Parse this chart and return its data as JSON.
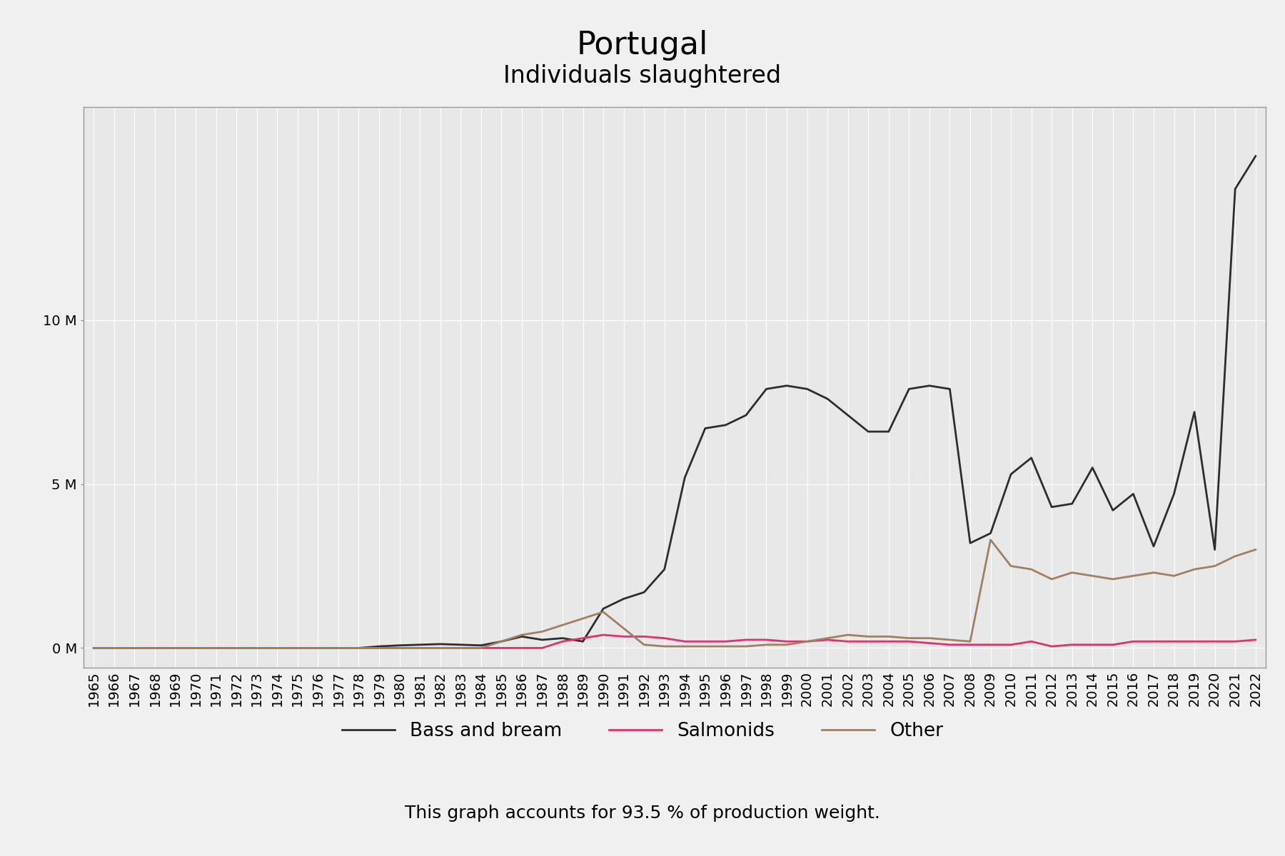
{
  "title": "Portugal",
  "subtitle": "Individuals slaughtered",
  "footnote": "This graph accounts for 93.5 % of production weight.",
  "years": [
    1965,
    1966,
    1967,
    1968,
    1969,
    1970,
    1971,
    1972,
    1973,
    1974,
    1975,
    1976,
    1977,
    1978,
    1979,
    1980,
    1981,
    1982,
    1983,
    1984,
    1985,
    1986,
    1987,
    1988,
    1989,
    1990,
    1991,
    1992,
    1993,
    1994,
    1995,
    1996,
    1997,
    1998,
    1999,
    2000,
    2001,
    2002,
    2003,
    2004,
    2005,
    2006,
    2007,
    2008,
    2009,
    2010,
    2011,
    2012,
    2013,
    2014,
    2015,
    2016,
    2017,
    2018,
    2019,
    2020,
    2021,
    2022
  ],
  "bass_and_bream": [
    0,
    0,
    0,
    0,
    0,
    0,
    0,
    0,
    0,
    0,
    0,
    0,
    0,
    0,
    50000,
    80000,
    100000,
    120000,
    100000,
    80000,
    200000,
    350000,
    250000,
    300000,
    200000,
    1200000,
    1500000,
    1700000,
    2400000,
    5200000,
    6700000,
    6800000,
    7100000,
    7900000,
    8000000,
    7900000,
    7600000,
    7100000,
    6600000,
    6600000,
    7900000,
    8000000,
    7900000,
    3200000,
    3500000,
    5300000,
    5800000,
    4300000,
    4400000,
    5500000,
    4200000,
    4700000,
    3100000,
    4700000,
    7200000,
    3000000,
    14000000,
    15000000
  ],
  "salmonids": [
    0,
    0,
    0,
    0,
    0,
    0,
    0,
    0,
    0,
    0,
    0,
    0,
    0,
    0,
    0,
    0,
    0,
    0,
    0,
    0,
    0,
    0,
    0,
    200000,
    300000,
    400000,
    350000,
    350000,
    300000,
    200000,
    200000,
    200000,
    250000,
    250000,
    200000,
    200000,
    250000,
    200000,
    200000,
    200000,
    200000,
    150000,
    100000,
    100000,
    100000,
    100000,
    200000,
    50000,
    100000,
    100000,
    100000,
    200000,
    200000,
    200000,
    200000,
    200000,
    200000,
    250000
  ],
  "other": [
    0,
    0,
    0,
    0,
    0,
    0,
    0,
    0,
    0,
    0,
    0,
    0,
    0,
    0,
    0,
    0,
    0,
    0,
    0,
    0,
    200000,
    400000,
    500000,
    700000,
    900000,
    1100000,
    600000,
    100000,
    50000,
    50000,
    50000,
    50000,
    50000,
    100000,
    100000,
    200000,
    300000,
    400000,
    350000,
    350000,
    300000,
    300000,
    250000,
    200000,
    3300000,
    2500000,
    2400000,
    2100000,
    2300000,
    2200000,
    2100000,
    2200000,
    2300000,
    2200000,
    2400000,
    2500000,
    2800000,
    3000000
  ],
  "bass_color": "#2d2d2d",
  "salmonids_color": "#e03070",
  "other_color": "#a08060",
  "background_color": "#f0f0f0",
  "plot_bg_color": "#e8e8e8",
  "grid_color": "#ffffff",
  "yticks": [
    0,
    5000000,
    10000000
  ],
  "ylim": [
    -600000,
    16500000
  ],
  "title_fontsize": 32,
  "subtitle_fontsize": 24,
  "footnote_fontsize": 18,
  "legend_fontsize": 19,
  "tick_fontsize": 14
}
